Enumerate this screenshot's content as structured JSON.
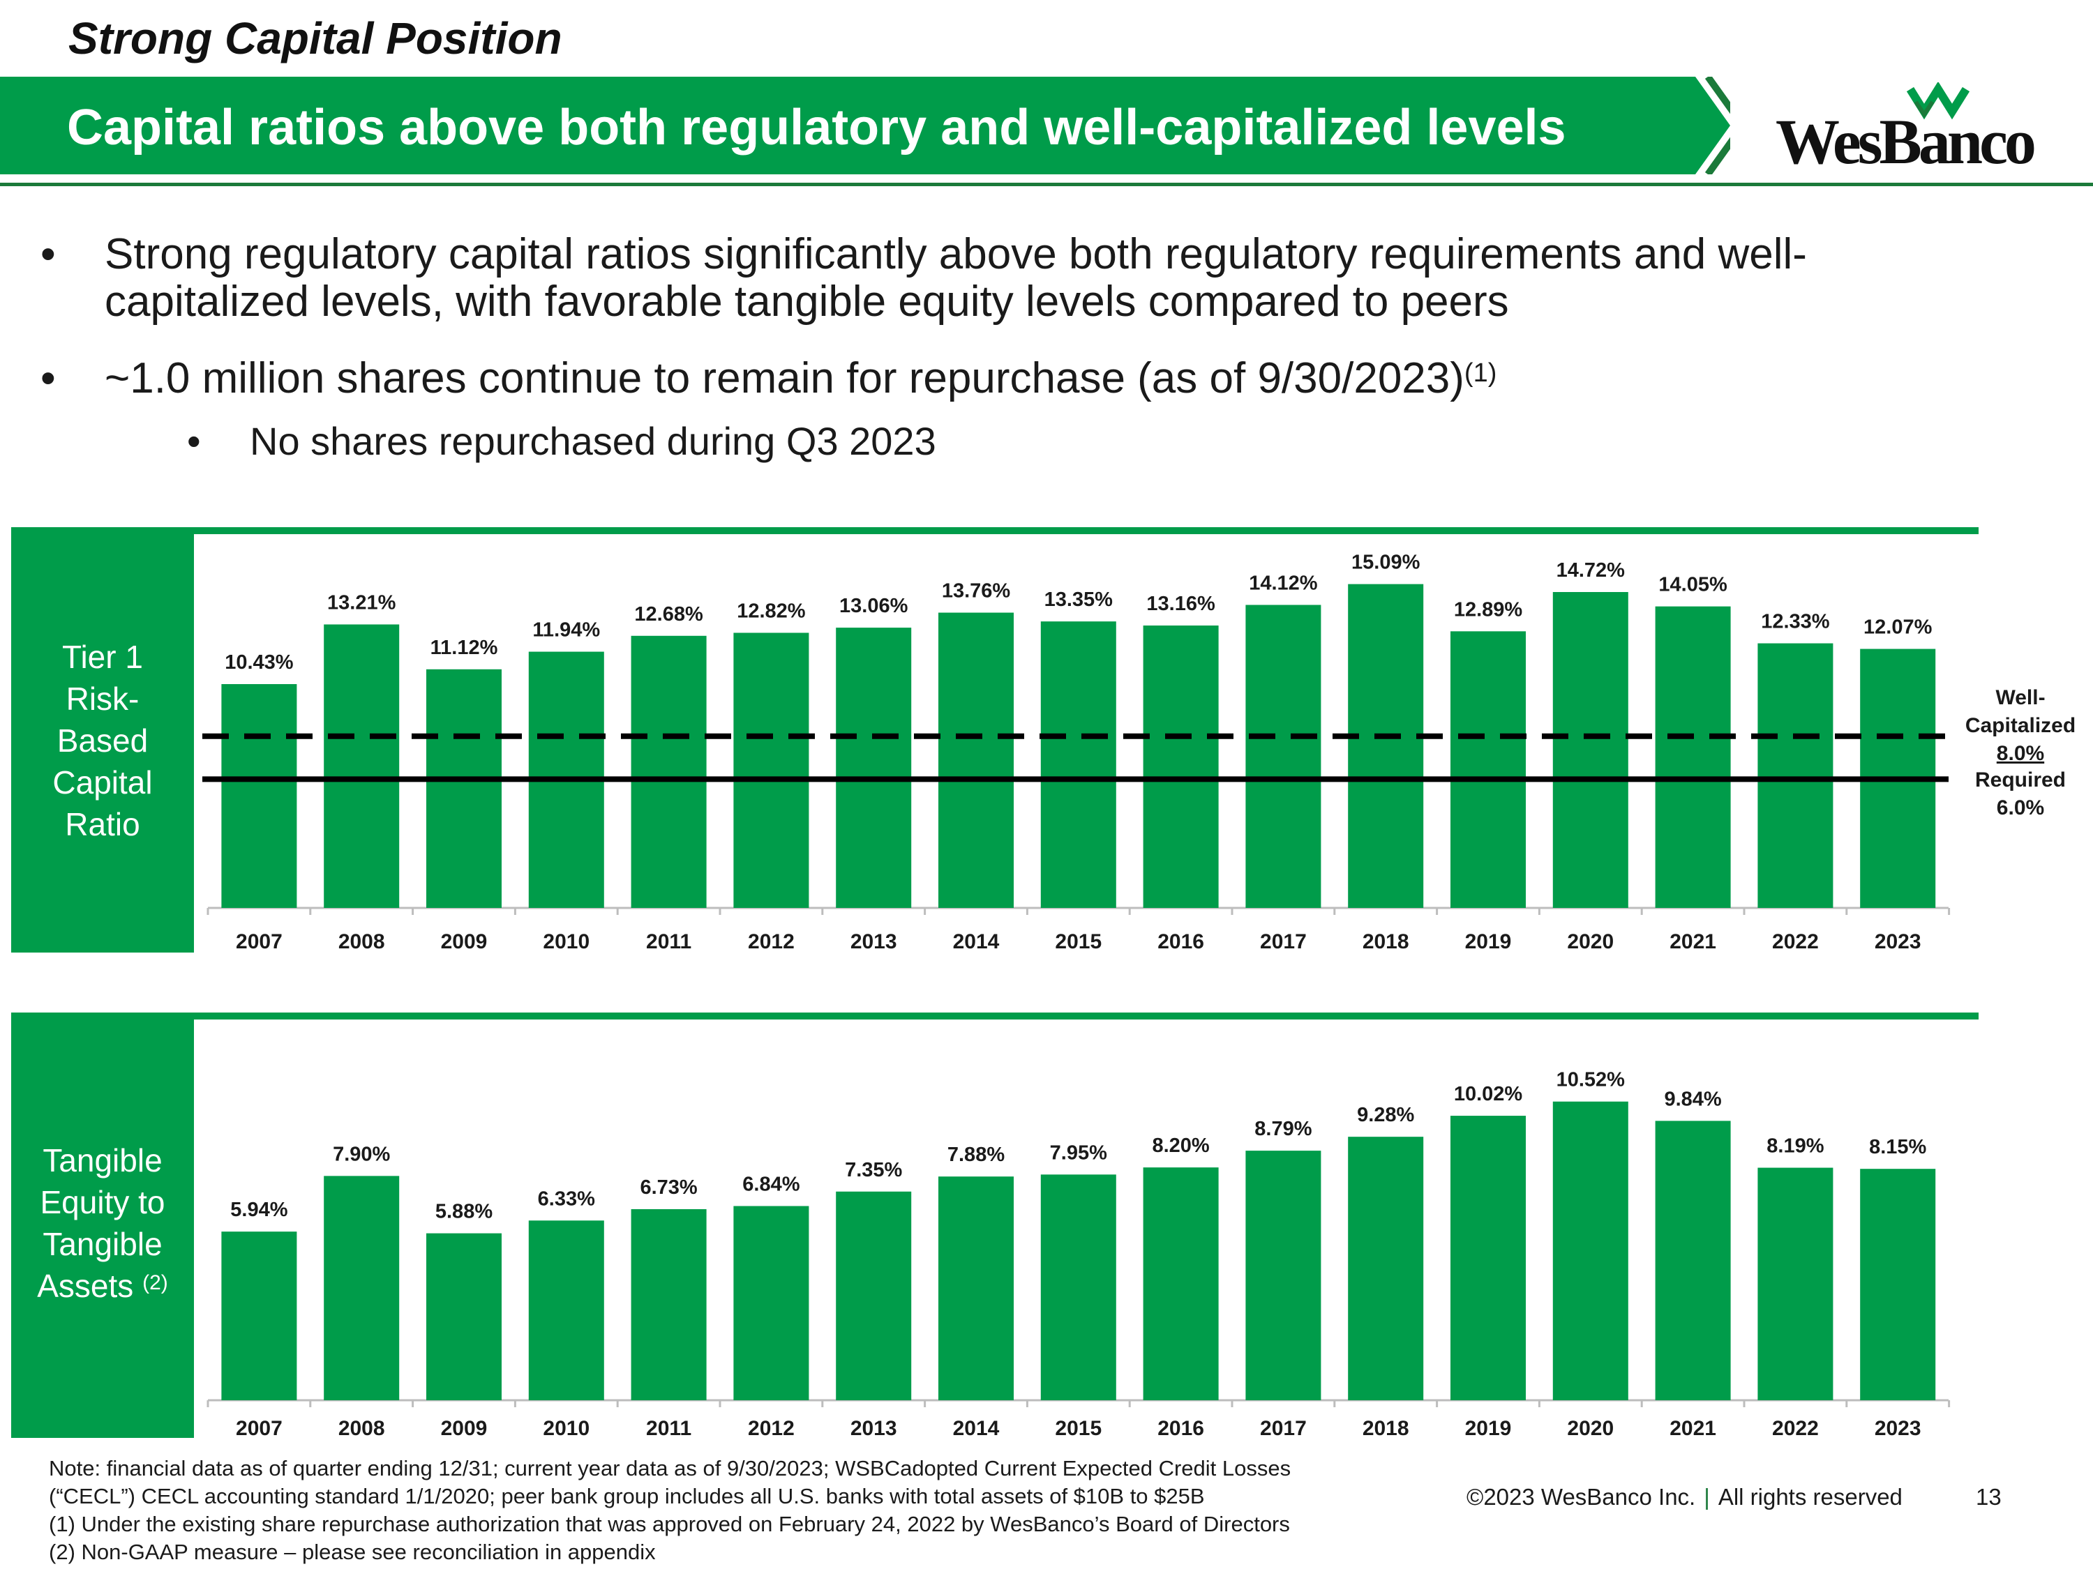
{
  "header": {
    "section_title": "Strong Capital Position",
    "banner_title": "Capital ratios above both regulatory and well-capitalized levels",
    "logo_text": "WesBanco",
    "logo_icon": "wesbanco-w-logo-icon",
    "brand_green": "#009c4a",
    "dark_green": "#1b7a3a"
  },
  "bullets": [
    {
      "line1": "Strong regulatory capital ratios significantly above both regulatory requirements and well-",
      "line2": "capitalized levels, with favorable tangible equity levels compared to peers"
    },
    {
      "text": "~1.0 million shares continue to remain for repurchase (as of 9/30/2023)",
      "sup": "(1)"
    }
  ],
  "sub_bullets": [
    {
      "text": "No shares repurchased during Q3 2023"
    }
  ],
  "chart_data": [
    {
      "type": "bar",
      "panel_label": [
        "Tier 1",
        "Risk-",
        "Based",
        "Capital",
        "Ratio"
      ],
      "categories": [
        "2007",
        "2008",
        "2009",
        "2010",
        "2011",
        "2012",
        "2013",
        "2014",
        "2015",
        "2016",
        "2017",
        "2018",
        "2019",
        "2020",
        "2021",
        "2022",
        "2023"
      ],
      "values": [
        10.43,
        13.21,
        11.12,
        11.94,
        12.68,
        12.82,
        13.06,
        13.76,
        13.35,
        13.16,
        14.12,
        15.09,
        12.89,
        14.72,
        14.05,
        12.33,
        12.07
      ],
      "data_labels": [
        "10.43%",
        "13.21%",
        "11.12%",
        "11.94%",
        "12.68%",
        "12.82%",
        "13.06%",
        "13.76%",
        "13.35%",
        "13.16%",
        "14.12%",
        "15.09%",
        "12.89%",
        "14.72%",
        "14.05%",
        "12.33%",
        "12.07%"
      ],
      "ylim": [
        0,
        15.5
      ],
      "bar_color": "#009c4a",
      "reference_lines": [
        {
          "value": 8.0,
          "style": "dashed",
          "label": [
            "Well-",
            "Capitalized",
            "8.0%"
          ]
        },
        {
          "value": 6.0,
          "style": "solid",
          "label": [
            "Required",
            "6.0%"
          ]
        }
      ]
    },
    {
      "type": "bar",
      "panel_label": [
        "Tangible",
        "Equity to",
        "Tangible",
        "Assets"
      ],
      "panel_label_sup": "(2)",
      "categories": [
        "2007",
        "2008",
        "2009",
        "2010",
        "2011",
        "2012",
        "2013",
        "2014",
        "2015",
        "2016",
        "2017",
        "2018",
        "2019",
        "2020",
        "2021",
        "2022",
        "2023"
      ],
      "values": [
        5.94,
        7.9,
        5.88,
        6.33,
        6.73,
        6.84,
        7.35,
        7.88,
        7.95,
        8.2,
        8.79,
        9.28,
        10.02,
        10.52,
        9.84,
        8.19,
        8.15
      ],
      "data_labels": [
        "5.94%",
        "7.90%",
        "5.88%",
        "6.33%",
        "6.73%",
        "6.84%",
        "7.35%",
        "7.88%",
        "7.95%",
        "8.20%",
        "8.79%",
        "9.28%",
        "10.02%",
        "10.52%",
        "9.84%",
        "8.19%",
        "8.15%"
      ],
      "ylim": [
        0,
        11.2
      ],
      "bar_color": "#009c4a"
    }
  ],
  "footnotes": {
    "note_line1": "Note: financial data as of quarter ending 12/31; current year data as of 9/30/2023; WSBCadopted Current Expected Credit Losses",
    "note_line2": "(“CECL”) CECL accounting standard 1/1/2020; peer bank group includes all U.S. banks with total assets of $10B to $25B",
    "fn1": "(1)   Under the existing share repurchase authorization that was approved on February 24, 2022 by WesBanco’s Board of Directors",
    "fn2": "(2)   Non-GAAP measure – please see reconciliation in appendix"
  },
  "footer": {
    "copyright": "©2023 WesBanco Inc.",
    "separator": "|",
    "rights": "All rights reserved",
    "page_number": "13"
  }
}
